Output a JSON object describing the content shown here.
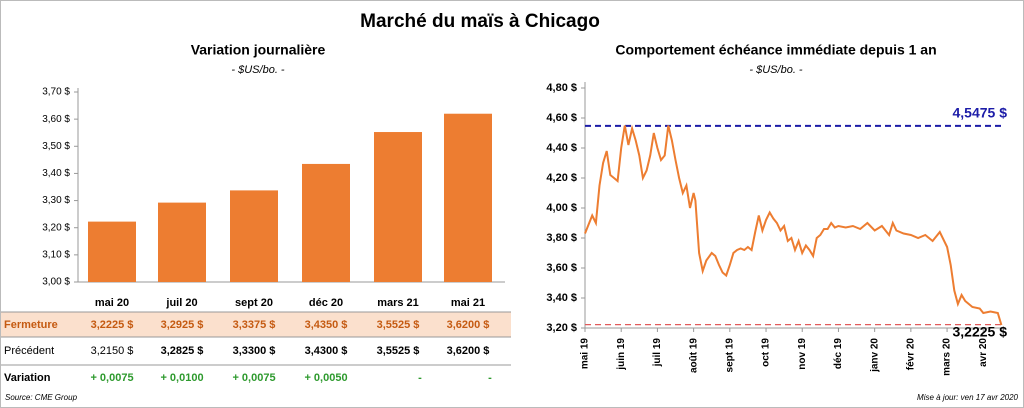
{
  "title": "Marché du maïs à Chicago",
  "chart_data": [
    {
      "type": "bar",
      "title": "Variation  journalière",
      "subtitle": "- $US/bo. -",
      "categories": [
        "mai 20",
        "juil 20",
        "sept 20",
        "déc 20",
        "mars 21",
        "mai 21"
      ],
      "values": [
        3.2225,
        3.2925,
        3.3375,
        3.435,
        3.5525,
        3.62
      ],
      "value_labels": [
        "3,2225  $",
        "3,2925  $",
        "3,3375  $",
        "3,4350  $",
        "3,5525  $",
        "3,6200  $"
      ],
      "color": "#ed7d31",
      "ylim": [
        3.0,
        3.7
      ],
      "yticks": [
        {
          "value": 3.0,
          "label": "3,00 $"
        },
        {
          "value": 3.1,
          "label": "3,10 $"
        },
        {
          "value": 3.2,
          "label": "3,20 $"
        },
        {
          "value": 3.3,
          "label": "3,30 $"
        },
        {
          "value": 3.4,
          "label": "3,40 $"
        },
        {
          "value": 3.5,
          "label": "3,50 $"
        },
        {
          "value": 3.6,
          "label": "3,60 $"
        },
        {
          "value": 3.7,
          "label": "3,70 $"
        }
      ]
    },
    {
      "type": "line",
      "title": "Comportement  échéance immédiate depuis 1 an",
      "subtitle": "- $US/bo. -",
      "x": [
        0,
        0.2,
        0.3,
        0.4,
        0.5,
        0.6,
        0.7,
        0.8,
        0.9,
        1.0,
        1.1,
        1.2,
        1.3,
        1.4,
        1.5,
        1.6,
        1.7,
        1.8,
        1.9,
        2.0,
        2.1,
        2.2,
        2.3,
        2.4,
        2.5,
        2.6,
        2.7,
        2.8,
        2.9,
        3.0,
        3.05,
        3.15,
        3.25,
        3.35,
        3.5,
        3.6,
        3.7,
        3.8,
        3.9,
        4.0,
        4.1,
        4.2,
        4.3,
        4.4,
        4.5,
        4.6,
        4.7,
        4.8,
        4.9,
        5.0,
        5.1,
        5.2,
        5.3,
        5.4,
        5.5,
        5.6,
        5.7,
        5.8,
        5.9,
        6.0,
        6.1,
        6.2,
        6.3,
        6.4,
        6.5,
        6.6,
        6.7,
        6.8,
        6.9,
        7.0,
        7.2,
        7.4,
        7.6,
        7.8,
        8.0,
        8.2,
        8.4,
        8.5,
        8.6,
        8.8,
        9.0,
        9.2,
        9.4,
        9.6,
        9.8,
        10.0,
        10.1,
        10.2,
        10.3,
        10.4,
        10.5,
        10.7,
        10.9,
        11.0,
        11.2,
        11.4,
        11.5
      ],
      "series": [
        {
          "color": "#ed7d31",
          "values": [
            3.83,
            3.95,
            3.9,
            4.15,
            4.3,
            4.38,
            4.22,
            4.2,
            4.18,
            4.4,
            4.55,
            4.42,
            4.53,
            4.45,
            4.35,
            4.2,
            4.25,
            4.35,
            4.5,
            4.4,
            4.32,
            4.35,
            4.55,
            4.45,
            4.32,
            4.2,
            4.1,
            4.15,
            4.0,
            4.1,
            4.05,
            3.7,
            3.58,
            3.65,
            3.7,
            3.68,
            3.62,
            3.57,
            3.55,
            3.62,
            3.7,
            3.72,
            3.73,
            3.72,
            3.74,
            3.72,
            3.84,
            3.95,
            3.85,
            3.92,
            3.97,
            3.93,
            3.9,
            3.85,
            3.88,
            3.78,
            3.8,
            3.72,
            3.78,
            3.7,
            3.75,
            3.72,
            3.68,
            3.8,
            3.82,
            3.86,
            3.86,
            3.9,
            3.87,
            3.88,
            3.87,
            3.88,
            3.86,
            3.9,
            3.85,
            3.88,
            3.82,
            3.9,
            3.85,
            3.83,
            3.82,
            3.8,
            3.82,
            3.78,
            3.84,
            3.74,
            3.62,
            3.45,
            3.36,
            3.42,
            3.38,
            3.34,
            3.33,
            3.3,
            3.31,
            3.3,
            3.22
          ]
        }
      ],
      "xlim": [
        0,
        11.6
      ],
      "xticks": [
        {
          "value": 0,
          "label": "mai 19"
        },
        {
          "value": 1,
          "label": "juin 19"
        },
        {
          "value": 2,
          "label": "juil 19"
        },
        {
          "value": 3,
          "label": "août 19"
        },
        {
          "value": 4,
          "label": "sept 19"
        },
        {
          "value": 5,
          "label": "oct 19"
        },
        {
          "value": 6,
          "label": "nov 19"
        },
        {
          "value": 7,
          "label": "déc 19"
        },
        {
          "value": 8,
          "label": "janv 20"
        },
        {
          "value": 9,
          "label": "févr 20"
        },
        {
          "value": 10,
          "label": "mars 20"
        },
        {
          "value": 11,
          "label": "avr 20"
        }
      ],
      "ylim": [
        3.2,
        4.8
      ],
      "yticks": [
        {
          "value": 3.2,
          "label": "3,20 $"
        },
        {
          "value": 3.4,
          "label": "3,40 $"
        },
        {
          "value": 3.6,
          "label": "3,60 $"
        },
        {
          "value": 3.8,
          "label": "3,80 $"
        },
        {
          "value": 4.0,
          "label": "4,00 $"
        },
        {
          "value": 4.2,
          "label": "4,20 $"
        },
        {
          "value": 4.4,
          "label": "4,40 $"
        },
        {
          "value": 4.6,
          "label": "4,60 $"
        },
        {
          "value": 4.8,
          "label": "4,80 $"
        }
      ],
      "reference_lines": [
        {
          "value": 4.5475,
          "label": "4,5475 $",
          "color": "#1c1ca8"
        },
        {
          "value": 3.2225,
          "label": "3,2225 $",
          "color": "#e05a5a"
        }
      ]
    }
  ],
  "table": {
    "rows": [
      {
        "label": "Fermeture"
      },
      {
        "label": "Précédent",
        "cells": [
          "3,2150  $",
          "3,2825  $",
          "3,3300  $",
          "3,4300  $",
          "3,5525  $",
          "3,6200  $"
        ]
      },
      {
        "label": "Variation",
        "cells": [
          "+ 0,0075",
          "+ 0,0100",
          "+ 0,0075",
          "+ 0,0050",
          "-",
          "-"
        ]
      }
    ]
  },
  "source": "Source: CME Group",
  "updated": "Mise à jour: ven 17 avr 2020"
}
